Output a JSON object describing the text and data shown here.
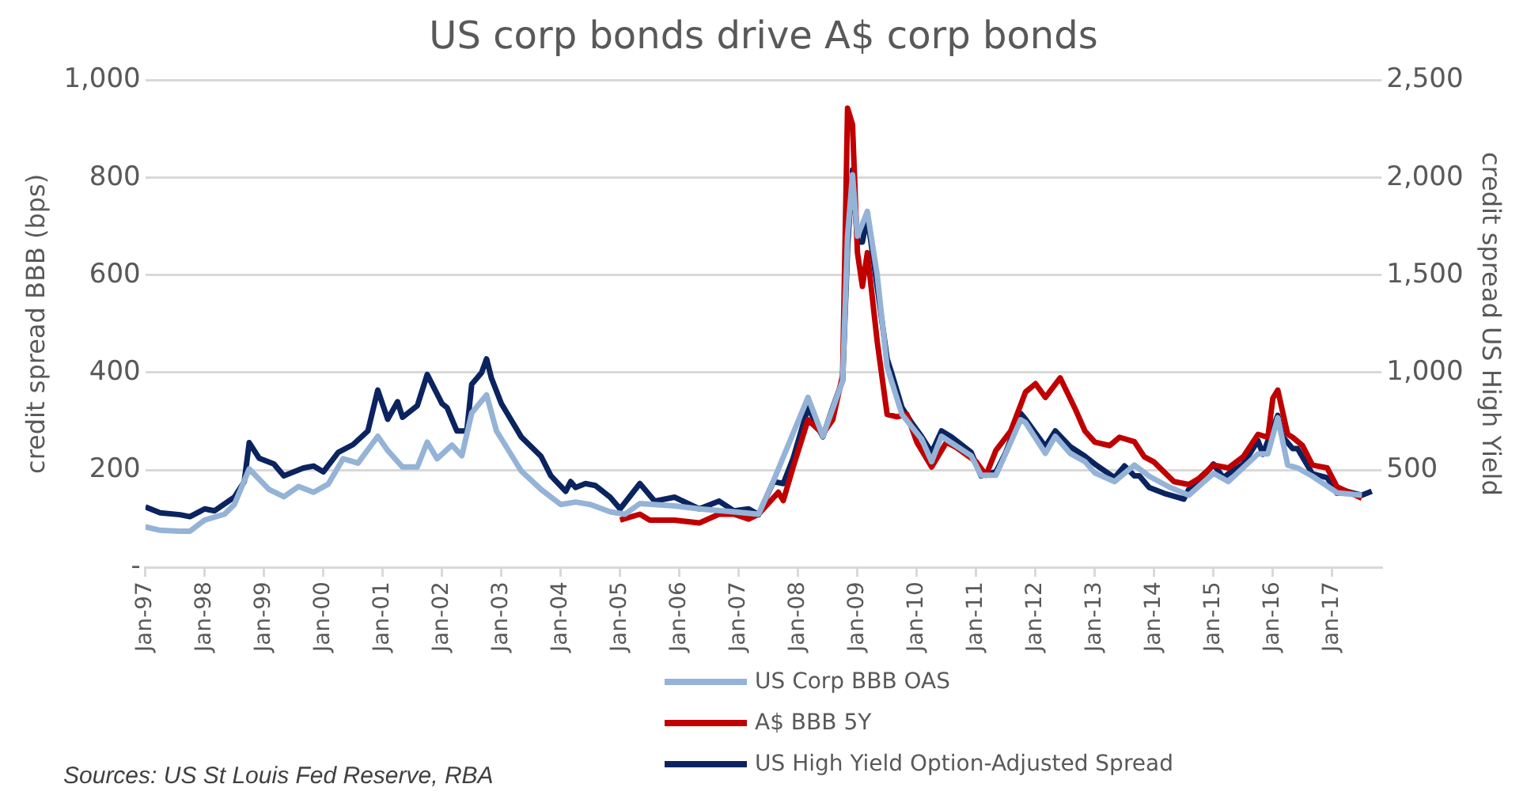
{
  "chart_data": {
    "type": "line",
    "title": "US corp bonds drive A$ corp bonds",
    "ylabel": "credit spread BBB (bps)",
    "y2label": "credit spread US High Yield",
    "annotations": [
      "Sources: US St Louis Fed Reserve, RBA"
    ],
    "xlim": [
      "1997-01",
      "2017-11"
    ],
    "xticks": [
      {
        "value": "1997-01",
        "label": "Jan-97"
      },
      {
        "value": "1998-01",
        "label": "Jan-98"
      },
      {
        "value": "1999-01",
        "label": "Jan-99"
      },
      {
        "value": "2000-01",
        "label": "Jan-00"
      },
      {
        "value": "2001-01",
        "label": "Jan-01"
      },
      {
        "value": "2002-01",
        "label": "Jan-02"
      },
      {
        "value": "2003-01",
        "label": "Jan-03"
      },
      {
        "value": "2004-01",
        "label": "Jan-04"
      },
      {
        "value": "2005-01",
        "label": "Jan-05"
      },
      {
        "value": "2006-01",
        "label": "Jan-06"
      },
      {
        "value": "2007-01",
        "label": "Jan-07"
      },
      {
        "value": "2008-01",
        "label": "Jan-08"
      },
      {
        "value": "2009-01",
        "label": "Jan-09"
      },
      {
        "value": "2010-01",
        "label": "Jan-10"
      },
      {
        "value": "2011-01",
        "label": "Jan-11"
      },
      {
        "value": "2012-01",
        "label": "Jan-12"
      },
      {
        "value": "2013-01",
        "label": "Jan-13"
      },
      {
        "value": "2014-01",
        "label": "Jan-14"
      },
      {
        "value": "2015-01",
        "label": "Jan-15"
      },
      {
        "value": "2016-01",
        "label": "Jan-16"
      },
      {
        "value": "2017-01",
        "label": "Jan-17"
      }
    ],
    "ylim": [
      0,
      1000
    ],
    "yticks": [
      {
        "value": 0,
        "label": "-"
      },
      200,
      400,
      600,
      800,
      {
        "value": 1000,
        "label": "1,000"
      }
    ],
    "y2lim": [
      0,
      2500
    ],
    "y2ticks": [
      500,
      {
        "value": 1000,
        "label": "1,000"
      },
      {
        "value": 1500,
        "label": "1,500"
      },
      {
        "value": 2000,
        "label": "2,000"
      },
      {
        "value": 2500,
        "label": "2,500"
      }
    ],
    "grid": "y",
    "legend": "bottom",
    "marker": "none",
    "line_style": "solid",
    "series": [
      {
        "name": "US Corp BBB OAS",
        "color": "#95b3d7",
        "x": [
          "1997-01",
          "1997-04",
          "1997-08",
          "1997-10",
          "1998-01",
          "1998-05",
          "1998-07",
          "1998-10",
          "1999-02",
          "1999-05",
          "1999-08",
          "1999-11",
          "2000-02",
          "2000-05",
          "2000-08",
          "2000-12",
          "2001-02",
          "2001-05",
          "2001-08",
          "2001-10",
          "2001-12",
          "2002-03",
          "2002-05",
          "2002-07",
          "2002-10",
          "2002-12",
          "2003-05",
          "2003-09",
          "2004-01",
          "2004-04",
          "2004-07",
          "2004-11",
          "2005-02",
          "2005-05",
          "2005-12",
          "2006-05",
          "2006-12",
          "2007-05",
          "2007-08",
          "2008-03",
          "2008-06",
          "2008-10",
          "2008-11",
          "2008-12",
          "2009-01",
          "2009-03",
          "2009-05",
          "2009-07",
          "2009-10",
          "2010-02",
          "2010-04",
          "2010-06",
          "2010-12",
          "2011-02",
          "2011-05",
          "2011-07",
          "2011-10",
          "2011-11",
          "2012-03",
          "2012-05",
          "2012-08",
          "2012-11",
          "2013-01",
          "2013-05",
          "2013-09",
          "2013-12",
          "2014-04",
          "2014-08",
          "2015-01",
          "2015-04",
          "2015-10",
          "2015-12",
          "2016-02",
          "2016-04",
          "2016-06",
          "2016-09",
          "2017-02",
          "2017-07"
        ],
        "values": [
          83,
          76,
          74,
          74,
          97,
          109,
          129,
          202,
          160,
          145,
          166,
          154,
          171,
          223,
          214,
          269,
          240,
          206,
          206,
          257,
          223,
          251,
          229,
          317,
          354,
          280,
          198,
          160,
          129,
          134,
          129,
          114,
          109,
          131,
          126,
          120,
          114,
          109,
          177,
          349,
          269,
          383,
          680,
          806,
          680,
          731,
          600,
          411,
          314,
          263,
          217,
          269,
          229,
          189,
          189,
          234,
          303,
          297,
          234,
          269,
          234,
          217,
          194,
          176,
          210,
          187,
          165,
          148,
          193,
          176,
          233,
          233,
          307,
          210,
          204,
          187,
          153,
          148
        ]
      },
      {
        "name": "A$ BBB 5Y",
        "color": "#c00000",
        "x": [
          "2005-01",
          "2005-05",
          "2005-07",
          "2005-12",
          "2006-05",
          "2006-09",
          "2006-12",
          "2007-03",
          "2007-05",
          "2007-09",
          "2007-10",
          "2007-12",
          "2008-03",
          "2008-06",
          "2008-08",
          "2008-10",
          "2008-11",
          "2008-12",
          "2009-01",
          "2009-02",
          "2009-03",
          "2009-05",
          "2009-07",
          "2009-09",
          "2009-11",
          "2010-01",
          "2010-04",
          "2010-07",
          "2010-09",
          "2011-01",
          "2011-03",
          "2011-05",
          "2011-08",
          "2011-11",
          "2012-01",
          "2012-03",
          "2012-06",
          "2012-09",
          "2012-11",
          "2013-01",
          "2013-04",
          "2013-06",
          "2013-09",
          "2013-11",
          "2014-01",
          "2014-05",
          "2014-08",
          "2014-10",
          "2015-01",
          "2015-04",
          "2015-07",
          "2015-10",
          "2015-12",
          "2016-01",
          "2016-02",
          "2016-04",
          "2016-05",
          "2016-07",
          "2016-09",
          "2016-12",
          "2017-02",
          "2017-04",
          "2017-07"
        ],
        "values": [
          97,
          109,
          97,
          97,
          91,
          109,
          109,
          99,
          109,
          154,
          137,
          206,
          303,
          274,
          303,
          394,
          943,
          909,
          646,
          577,
          646,
          463,
          314,
          309,
          314,
          257,
          206,
          257,
          246,
          217,
          189,
          240,
          280,
          360,
          377,
          349,
          389,
          326,
          280,
          257,
          250,
          267,
          258,
          227,
          216,
          176,
          170,
          182,
          210,
          204,
          227,
          273,
          267,
          347,
          364,
          273,
          267,
          250,
          210,
          204,
          165,
          156,
          142
        ]
      },
      {
        "name": "US High Yield Option-Adjusted Spread",
        "color": "#0b2460",
        "axis": "y2",
        "x": [
          "1997-01",
          "1997-04",
          "1997-08",
          "1997-10",
          "1998-01",
          "1998-03",
          "1998-07",
          "1998-09",
          "1998-10",
          "1998-12",
          "1999-03",
          "1999-05",
          "1999-09",
          "1999-11",
          "2000-01",
          "2000-04",
          "2000-07",
          "2000-10",
          "2000-12",
          "2001-02",
          "2001-04",
          "2001-05",
          "2001-08",
          "2001-10",
          "2002-01",
          "2002-02",
          "2002-04",
          "2002-06",
          "2002-07",
          "2002-09",
          "2002-10",
          "2002-11",
          "2003-01",
          "2003-05",
          "2003-09",
          "2003-11",
          "2004-02",
          "2004-03",
          "2004-04",
          "2004-06",
          "2004-08",
          "2004-11",
          "2005-01",
          "2005-05",
          "2005-08",
          "2005-12",
          "2006-05",
          "2006-09",
          "2006-12",
          "2007-03",
          "2007-05",
          "2007-08",
          "2007-10",
          "2007-12",
          "2008-03",
          "2008-06",
          "2008-08",
          "2008-10",
          "2008-11",
          "2008-12",
          "2009-01",
          "2009-02",
          "2009-03",
          "2009-05",
          "2009-07",
          "2009-08",
          "2009-10",
          "2009-12",
          "2010-02",
          "2010-04",
          "2010-06",
          "2010-08",
          "2010-12",
          "2011-02",
          "2011-05",
          "2011-07",
          "2011-10",
          "2011-11",
          "2012-03",
          "2012-05",
          "2012-08",
          "2012-11",
          "2013-01",
          "2013-05",
          "2013-07",
          "2013-09",
          "2013-10",
          "2013-12",
          "2014-03",
          "2014-07",
          "2014-08",
          "2014-10",
          "2015-01",
          "2015-03",
          "2015-04",
          "2015-07",
          "2015-10",
          "2015-11",
          "2015-12",
          "2016-02",
          "2016-03",
          "2016-05",
          "2016-06",
          "2016-09",
          "2016-12",
          "2017-02",
          "2017-04",
          "2017-07",
          "2017-09"
        ],
        "values": [
          310,
          280,
          270,
          260,
          300,
          290,
          360,
          440,
          640,
          560,
          530,
          470,
          510,
          520,
          490,
          590,
          630,
          700,
          910,
          760,
          850,
          770,
          830,
          990,
          840,
          820,
          700,
          700,
          940,
          1000,
          1070,
          970,
          840,
          670,
          570,
          470,
          390,
          440,
          410,
          430,
          420,
          360,
          300,
          430,
          340,
          360,
          300,
          340,
          290,
          300,
          270,
          440,
          430,
          560,
          820,
          670,
          820,
          960,
          1640,
          2040,
          1670,
          1670,
          1800,
          1440,
          1070,
          990,
          820,
          740,
          670,
          590,
          700,
          670,
          590,
          470,
          490,
          590,
          790,
          760,
          620,
          700,
          620,
          570,
          530,
          460,
          520,
          470,
          470,
          410,
          380,
          350,
          400,
          440,
          530,
          460,
          480,
          530,
          650,
          580,
          650,
          780,
          670,
          610,
          610,
          480,
          460,
          380,
          390,
          370,
          390
        ]
      }
    ]
  }
}
